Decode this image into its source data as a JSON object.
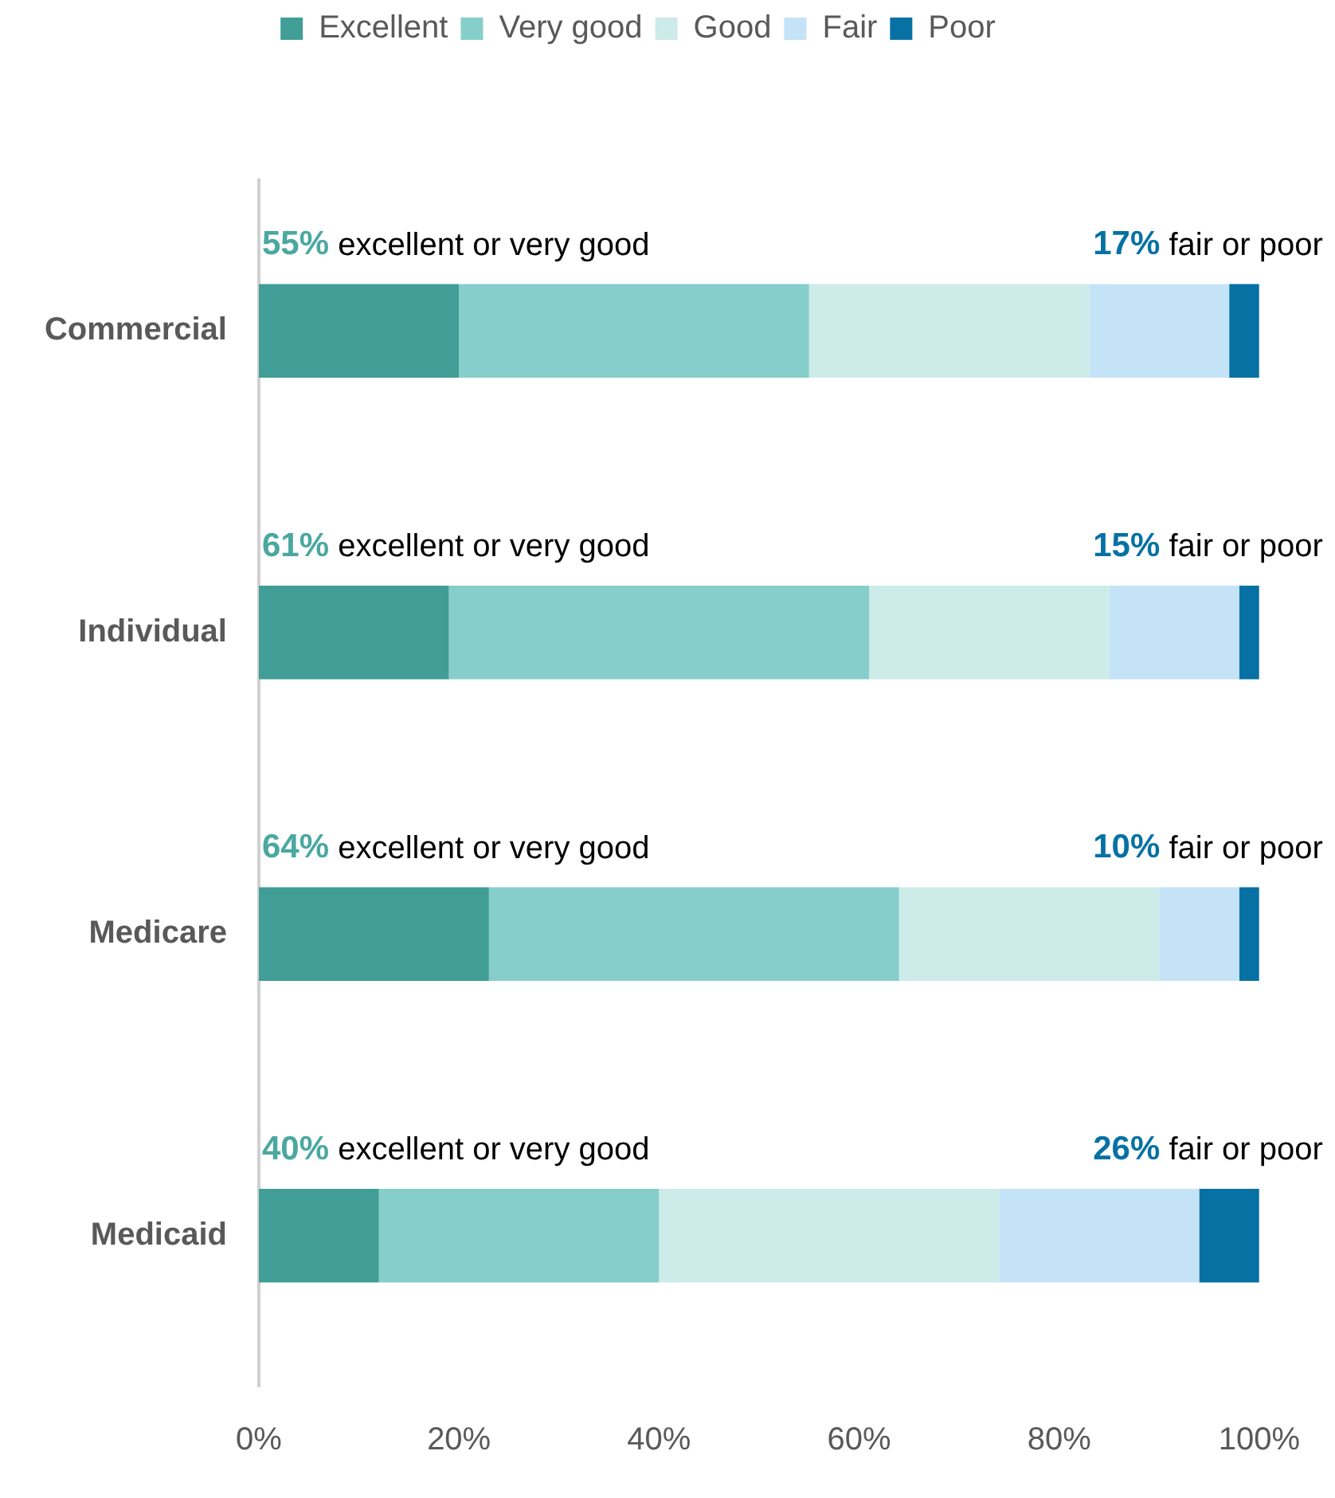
{
  "chart_data": {
    "type": "bar",
    "orientation": "horizontal",
    "stacked": true,
    "categories": [
      "Commercial",
      "Individual",
      "Medicare",
      "Medicaid"
    ],
    "series": [
      {
        "name": "Excellent",
        "color": "#409e97",
        "values": [
          20,
          19,
          23,
          12
        ]
      },
      {
        "name": "Very good",
        "color": "#86cecb",
        "values": [
          35,
          42,
          41,
          28
        ]
      },
      {
        "name": "Good",
        "color": "#cdebe8",
        "values": [
          28,
          24,
          26,
          34
        ]
      },
      {
        "name": "Fair",
        "color": "#c5e3f6",
        "values": [
          14,
          13,
          8,
          20
        ]
      },
      {
        "name": "Poor",
        "color": "#0771a4",
        "values": [
          3,
          2,
          2,
          6
        ]
      }
    ],
    "xlim": [
      0,
      100
    ],
    "xticks": [
      {
        "value": 0,
        "label": "0%"
      },
      {
        "value": 20,
        "label": "20%"
      },
      {
        "value": 40,
        "label": "40%"
      },
      {
        "value": 60,
        "label": "60%"
      },
      {
        "value": 80,
        "label": "80%"
      },
      {
        "value": 100,
        "label": "100%"
      }
    ],
    "grid": false,
    "legend": "top",
    "annotations": [
      "55% excellent or very good",
      "17% fair or poor",
      "61% excellent or very good",
      "15% fair or poor",
      "64% excellent or very good",
      "10% fair or poor",
      "40% excellent or very good",
      "26% fair or poor"
    ]
  }
}
